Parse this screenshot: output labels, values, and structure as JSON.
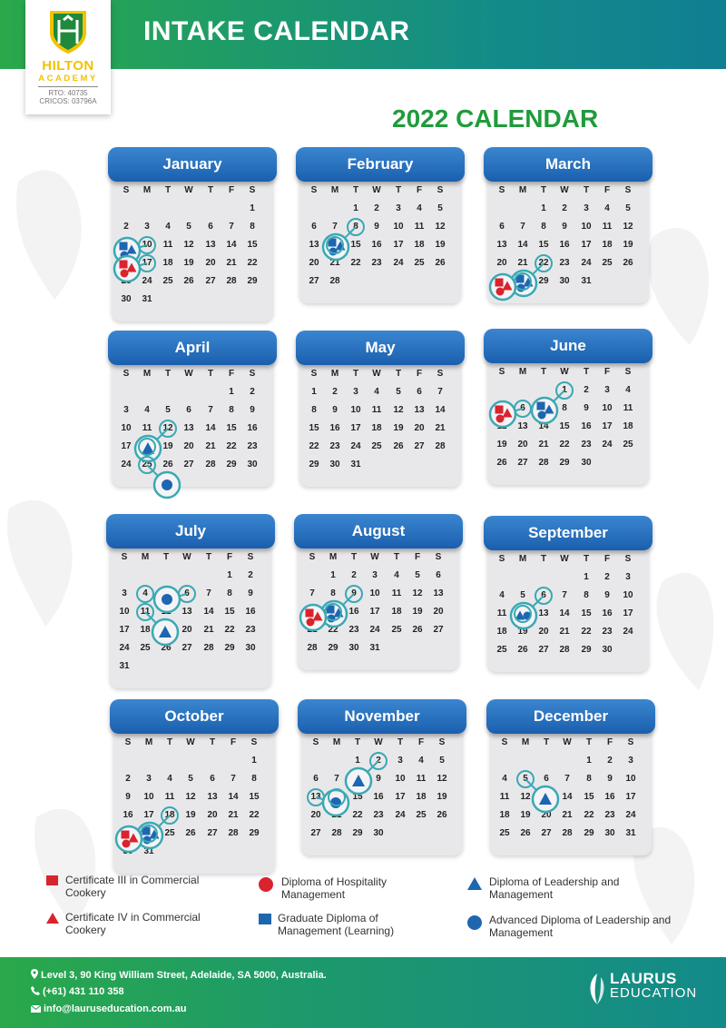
{
  "header": {
    "title": "INTAKE CALENDAR"
  },
  "logo": {
    "name": "HILTON",
    "sub": "ACADEMY",
    "rto": "RTO: 40735",
    "cricos": "CRICOS: 03796A"
  },
  "calendar_title": "2022 CALENDAR",
  "weekdays": [
    "S",
    "M",
    "T",
    "W",
    "T",
    "F",
    "S"
  ],
  "colors": {
    "red": "#d9232d",
    "blue": "#1e66b0",
    "ring": "#3aa9b4",
    "accent_green": "#1f9c3c"
  },
  "months": [
    {
      "name": "January",
      "first_day": 6,
      "days": 31,
      "intakes": [
        {
          "day": 10,
          "courses": [
            "graduate-diploma-management",
            "diploma-leadership-management",
            "advanced-diploma-leadership-management"
          ]
        },
        {
          "day": 17,
          "courses": [
            "certificate-iii-commercial-cookery",
            "certificate-iv-commercial-cookery",
            "diploma-hospitality-management"
          ]
        }
      ]
    },
    {
      "name": "February",
      "first_day": 2,
      "days": 28,
      "intakes": [
        {
          "day": 8,
          "courses": [
            "graduate-diploma-management",
            "diploma-leadership-management",
            "advanced-diploma-leadership-management"
          ]
        },
        {
          "day": 14,
          "courses": []
        }
      ]
    },
    {
      "name": "March",
      "first_day": 2,
      "days": 31,
      "intakes": [
        {
          "day": 22,
          "courses": [
            "graduate-diploma-management",
            "diploma-leadership-management",
            "advanced-diploma-leadership-management"
          ]
        },
        {
          "day": 28,
          "courses": [
            "certificate-iii-commercial-cookery",
            "certificate-iv-commercial-cookery",
            "diploma-hospitality-management"
          ]
        }
      ]
    },
    {
      "name": "April",
      "first_day": 5,
      "days": 30,
      "intakes": [
        {
          "day": 12,
          "courses": [
            "diploma-leadership-management"
          ]
        },
        {
          "day": 18,
          "courses": []
        },
        {
          "day": 25,
          "courses": [
            "advanced-diploma-leadership-management"
          ]
        }
      ]
    },
    {
      "name": "May",
      "first_day": 0,
      "days": 31,
      "intakes": []
    },
    {
      "name": "June",
      "first_day": 3,
      "days": 30,
      "intakes": [
        {
          "day": 1,
          "courses": [
            "graduate-diploma-management",
            "diploma-leadership-management",
            "advanced-diploma-leadership-management"
          ]
        },
        {
          "day": 6,
          "courses": [
            "certificate-iii-commercial-cookery",
            "certificate-iv-commercial-cookery",
            "diploma-hospitality-management"
          ]
        }
      ]
    },
    {
      "name": "July",
      "first_day": 5,
      "days": 31,
      "intakes": [
        {
          "day": 4,
          "courses": []
        },
        {
          "day": 6,
          "courses": [
            "advanced-diploma-leadership-management"
          ]
        },
        {
          "day": 11,
          "courses": [
            "diploma-leadership-management"
          ]
        }
      ]
    },
    {
      "name": "August",
      "first_day": 1,
      "days": 31,
      "intakes": [
        {
          "day": 9,
          "courses": [
            "graduate-diploma-management",
            "diploma-leadership-management",
            "advanced-diploma-leadership-management"
          ]
        },
        {
          "day": 15,
          "courses": [
            "certificate-iii-commercial-cookery",
            "certificate-iv-commercial-cookery",
            "diploma-hospitality-management"
          ]
        }
      ]
    },
    {
      "name": "September",
      "first_day": 4,
      "days": 30,
      "intakes": [
        {
          "day": 6,
          "courses": [
            "diploma-leadership-management",
            "advanced-diploma-leadership-management"
          ]
        },
        {
          "day": 12,
          "courses": []
        }
      ]
    },
    {
      "name": "October",
      "first_day": 6,
      "days": 31,
      "intakes": [
        {
          "day": 18,
          "courses": [
            "graduate-diploma-management",
            "diploma-leadership-management",
            "advanced-diploma-leadership-management"
          ]
        },
        {
          "day": 24,
          "courses": [
            "certificate-iii-commercial-cookery",
            "certificate-iv-commercial-cookery",
            "diploma-hospitality-management"
          ]
        }
      ]
    },
    {
      "name": "November",
      "first_day": 2,
      "days": 30,
      "intakes": [
        {
          "day": 2,
          "courses": [
            "diploma-leadership-management"
          ]
        },
        {
          "day": 13,
          "courses": [
            "advanced-diploma-leadership-management"
          ]
        },
        {
          "day": 14,
          "courses": []
        }
      ]
    },
    {
      "name": "December",
      "first_day": 4,
      "days": 31,
      "intakes": [
        {
          "day": 5,
          "courses": [
            "diploma-leadership-management"
          ]
        }
      ]
    }
  ],
  "legend": [
    {
      "shape": "square",
      "color": "red",
      "label": "Certificate III in Commercial Cookery"
    },
    {
      "shape": "triangle",
      "color": "red",
      "label": "Certificate IV in Commercial Cookery"
    },
    {
      "shape": "circle",
      "color": "red",
      "label": "Diploma of Hospitality Management"
    },
    {
      "shape": "square",
      "color": "blue",
      "label": "Graduate Diploma of Management (Learning)"
    },
    {
      "shape": "triangle",
      "color": "blue",
      "label": "Diploma of Leadership and Management"
    },
    {
      "shape": "circle",
      "color": "blue",
      "label": "Advanced Diploma of Leadership and Management"
    }
  ],
  "footer": {
    "address": "Level 3, 90 King William Street, Adelaide, SA 5000, Australia.",
    "phone": "(+61) 431 110 358",
    "email": "info@lauruseducation.com.au",
    "brand_top": "LAURUS",
    "brand_bottom": "EDUCATION"
  }
}
